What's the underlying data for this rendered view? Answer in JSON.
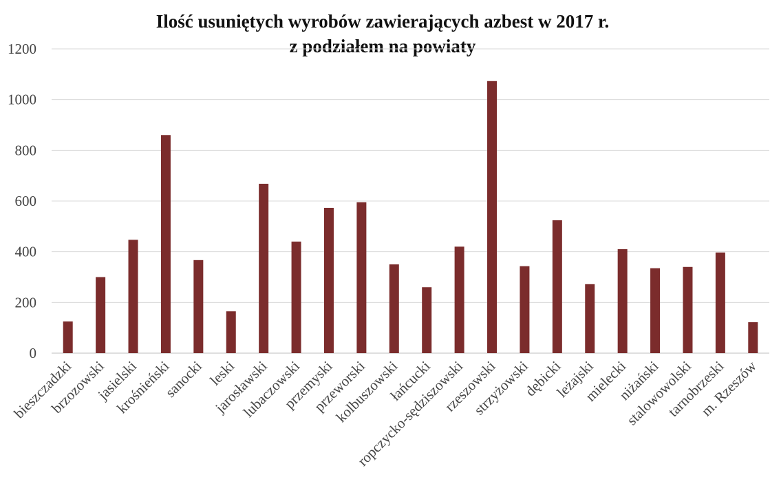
{
  "chart_data": {
    "type": "bar",
    "title_lines": [
      "Ilość usuniętych wyrobów zawierających azbest w 2017 r.",
      "z podziałem na powiaty"
    ],
    "xlabel": "",
    "ylabel": "",
    "ylim": [
      0,
      1200
    ],
    "yticks": [
      0,
      200,
      400,
      600,
      800,
      1000,
      1200
    ],
    "grid": true,
    "legend": "none",
    "bar_color": "#7b2c2c",
    "categories": [
      "bieszczadzki",
      "brzozowski",
      "jasielski",
      "krośnieński",
      "sanocki",
      "leski",
      "jarosławski",
      "lubaczowski",
      "przemyski",
      "przeworski",
      "kolbuszowski",
      "łańcucki",
      "ropczycko-sędziszowski",
      "rzeszowski",
      "strzyżowski",
      "dębicki",
      "leżajski",
      "mielecki",
      "niżański",
      "stalowowolski",
      "tarnobrzeski",
      "m. Rzeszów"
    ],
    "values": [
      125,
      300,
      447,
      860,
      367,
      165,
      668,
      440,
      573,
      595,
      350,
      260,
      420,
      1073,
      343,
      524,
      272,
      410,
      335,
      340,
      397,
      122
    ]
  }
}
